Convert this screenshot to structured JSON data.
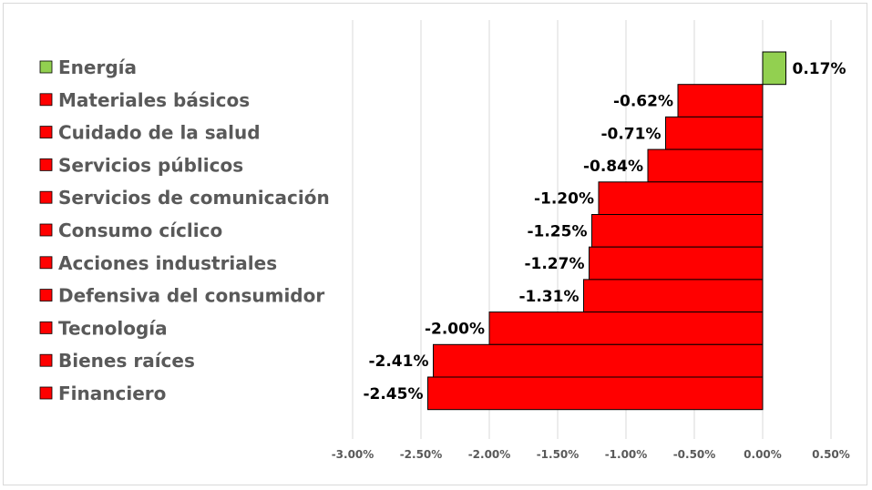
{
  "chart_data": {
    "type": "bar",
    "orientation": "horizontal",
    "categories": [
      "Energía",
      "Materiales básicos",
      "Cuidado de la salud",
      "Servicios públicos",
      "Servicios de comunicación",
      "Consumo cíclico",
      "Acciones industriales",
      "Defensiva del consumidor",
      "Tecnología",
      "Bienes raíces",
      "Financiero"
    ],
    "values": [
      0.17,
      -0.62,
      -0.71,
      -0.84,
      -1.2,
      -1.25,
      -1.27,
      -1.31,
      -2.0,
      -2.41,
      -2.45
    ],
    "data_labels": [
      "0.17%",
      "-0.62%",
      "-0.71%",
      "-0.84%",
      "-1.20%",
      "-1.25%",
      "-1.27%",
      "-1.31%",
      "-2.00%",
      "-2.41%",
      "-2.45%"
    ],
    "colors": [
      "#92d050",
      "#ff0000",
      "#ff0000",
      "#ff0000",
      "#ff0000",
      "#ff0000",
      "#ff0000",
      "#ff0000",
      "#ff0000",
      "#ff0000",
      "#ff0000"
    ],
    "xlim": [
      -3.0,
      0.5
    ],
    "xticks": [
      -3.0,
      -2.5,
      -2.0,
      -1.5,
      -1.0,
      -0.5,
      0.0,
      0.5
    ],
    "xtick_labels": [
      "-3.00%",
      "-2.50%",
      "-2.00%",
      "-1.50%",
      "-1.00%",
      "-0.50%",
      "0.00%",
      "0.50%"
    ],
    "grid": true,
    "legend_position": "left",
    "title": "",
    "xlabel": "",
    "ylabel": ""
  }
}
